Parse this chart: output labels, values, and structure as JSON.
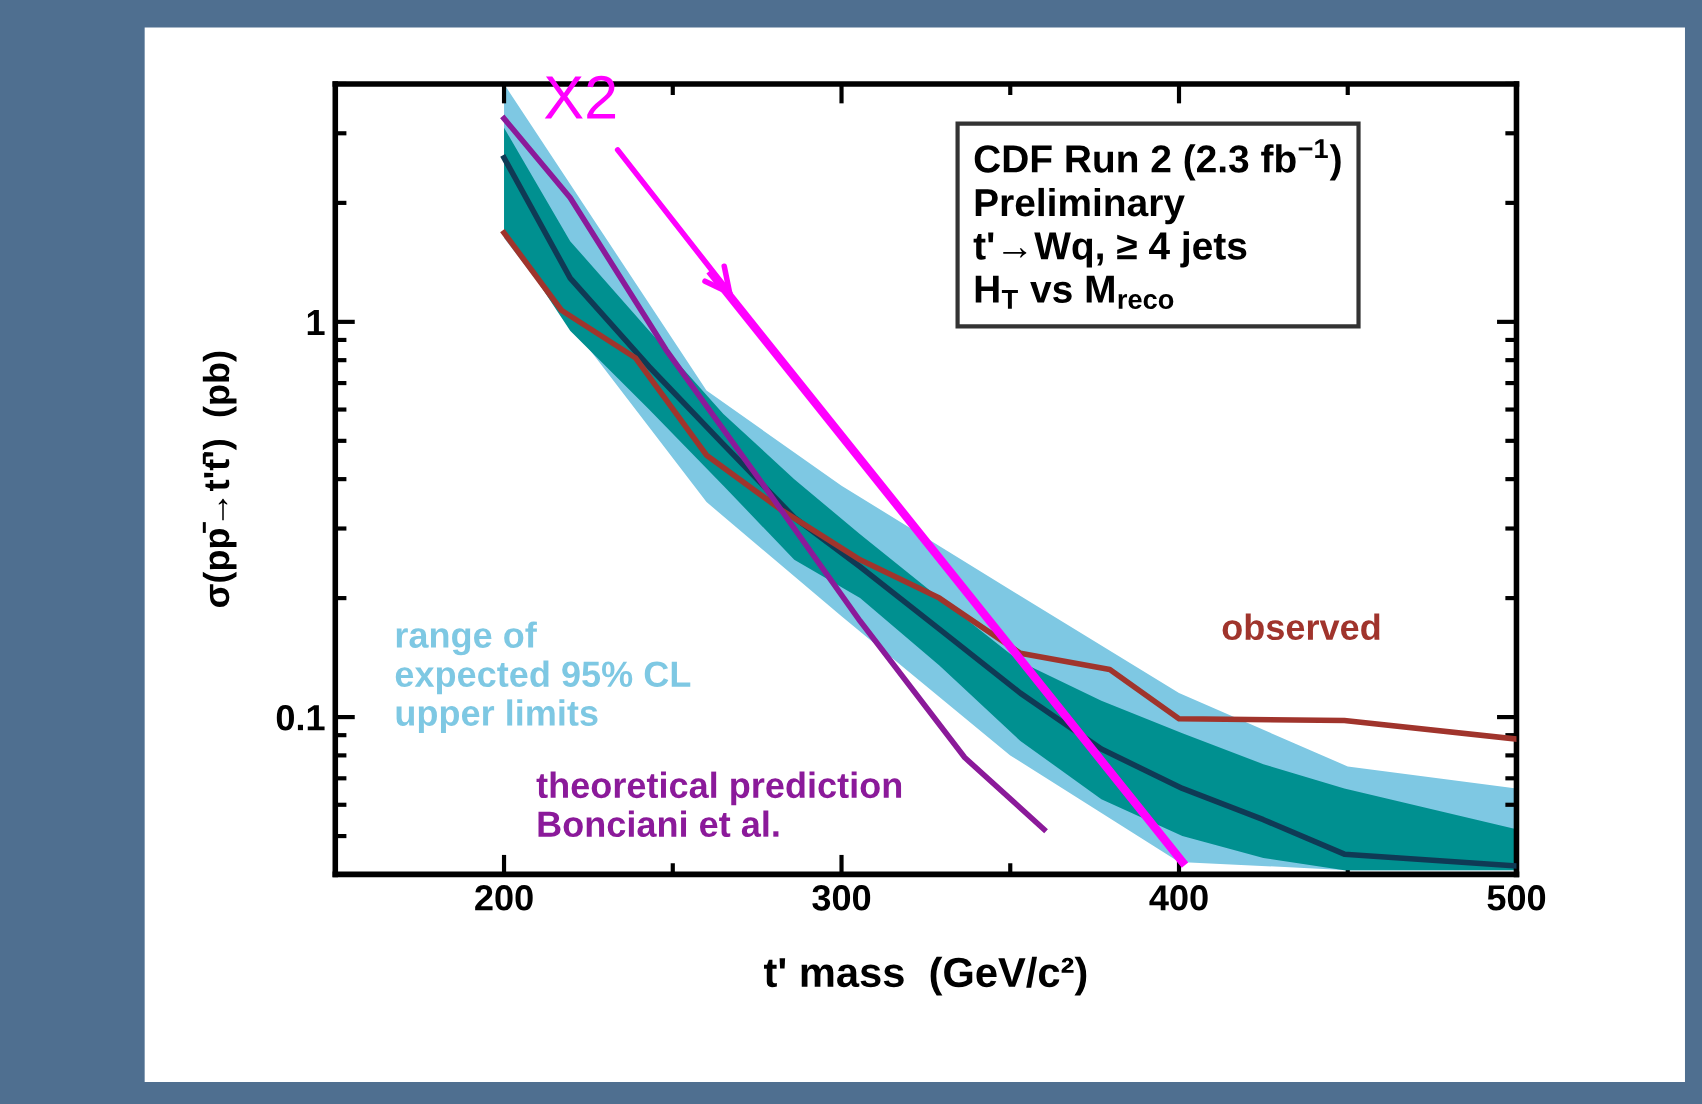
{
  "chart_data": {
    "type": "line",
    "xlabel": "t' mass  (GeV/c²)",
    "ylabel": "σ(pp̄→t't̄')  (pb)",
    "log": "y",
    "xlim": [
      150,
      500
    ],
    "ylim": [
      0.04,
      4
    ],
    "xticks": [
      200,
      300,
      400,
      500
    ],
    "yticks": [
      0.1,
      1
    ],
    "grid": false,
    "legend": false,
    "annotations": [
      "CDF Run 2 (2.3 fb$^{−1}$)\nPreliminary\nt'→Wq, ≥ 4 jets\nH$_{T}$ vs M$_{reco}$",
      {
        "text": "X2",
        "x": 268,
        "y": 1.15
      }
    ],
    "series": [
      {
        "name": "range of\nexpected 95% CL\nupper limits",
        "type": "area",
        "color": "#7ec8e3",
        "x": [
          200,
          260,
          300,
          350,
          400,
          450,
          500
        ],
        "values": [
          null,
          null,
          null,
          null,
          null,
          null,
          null
        ],
        "lower": [
          1.63,
          0.35,
          0.18,
          0.08,
          0.043,
          0.041,
          0.041
        ],
        "upper": [
          4.0,
          0.67,
          0.385,
          0.21,
          0.115,
          0.075,
          0.066
        ]
      },
      {
        "type": "area",
        "color": "#009090",
        "x": [
          200,
          219.6,
          243,
          265,
          286,
          305.5,
          329,
          353,
          377,
          401,
          425,
          449,
          500
        ],
        "values": [
          null,
          null,
          null,
          null,
          null,
          null,
          null,
          null,
          null,
          null,
          null,
          null,
          null
        ],
        "lower": [
          1.7,
          0.95,
          0.6,
          0.385,
          0.25,
          0.2,
          0.135,
          0.087,
          0.062,
          0.05,
          0.044,
          0.041,
          0.041
        ],
        "upper": [
          3.1,
          1.6,
          0.95,
          0.585,
          0.4,
          0.29,
          0.2,
          0.138,
          0.11,
          0.091,
          0.076,
          0.066,
          0.052
        ]
      },
      {
        "color": "#0f3a55",
        "x": [
          200,
          219.6,
          243,
          265,
          286,
          305.5,
          329,
          353,
          377,
          401,
          425,
          449,
          500
        ],
        "values": [
          2.6,
          1.29,
          0.77,
          0.49,
          0.32,
          0.24,
          0.167,
          0.115,
          0.083,
          0.066,
          0.055,
          0.045,
          0.042
        ]
      },
      {
        "name": "observed",
        "color": "#a0342c",
        "x": [
          200,
          217,
          239,
          260,
          282,
          305.5,
          329,
          353,
          379.5,
          400,
          449,
          500
        ],
        "values": [
          1.68,
          1.07,
          0.81,
          0.46,
          0.335,
          0.25,
          0.2,
          0.145,
          0.132,
          0.099,
          0.098,
          0.088
        ]
      },
      {
        "name": "theoretical prediction\nBonciani et al.",
        "color": "#8b1a9a",
        "x": [
          200,
          219.6,
          248,
          277,
          305.5,
          336.5,
          360
        ],
        "values": [
          3.27,
          2.06,
          0.85,
          0.385,
          0.175,
          0.079,
          0.052
        ]
      },
      {
        "color": "#ff00ff",
        "x": [
          261.7,
          401
        ],
        "values": [
          1.32,
          0.043
        ]
      }
    ]
  }
}
